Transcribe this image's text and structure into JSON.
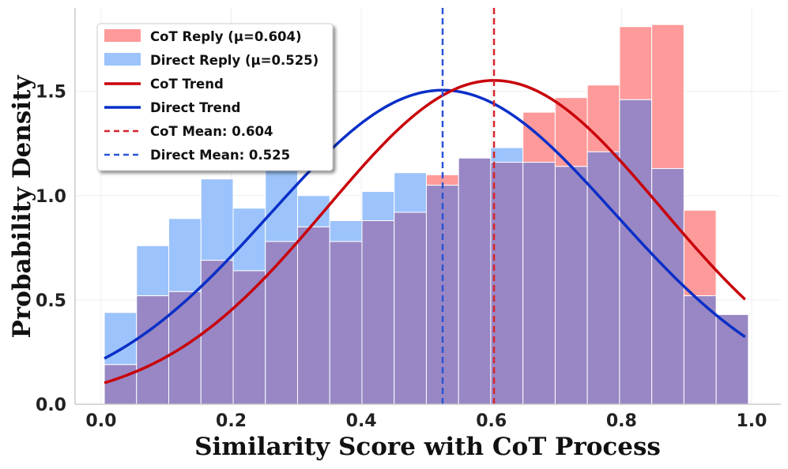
{
  "chart_data": {
    "type": "bar",
    "xlabel": "Similarity Score with CoT Process",
    "ylabel": "Probability Density",
    "xlim": [
      -0.04,
      1.045
    ],
    "ylim": [
      0,
      1.9
    ],
    "x_ticks": [
      "0.0",
      "0.2",
      "0.4",
      "0.6",
      "0.8",
      "1.0"
    ],
    "y_ticks": [
      "0.0",
      "0.5",
      "1.0",
      "1.5"
    ],
    "bin_edges": [
      0.005,
      0.0545,
      0.104,
      0.1535,
      0.203,
      0.2525,
      0.302,
      0.3515,
      0.401,
      0.4505,
      0.5,
      0.5495,
      0.599,
      0.6485,
      0.698,
      0.7475,
      0.797,
      0.8465,
      0.896,
      0.9455,
      0.995
    ],
    "series": [
      {
        "name": "CoT Reply (μ=0.604)",
        "kind": "histogram",
        "color": "#ff9a9a",
        "values": [
          0.19,
          0.52,
          0.54,
          0.69,
          0.64,
          0.78,
          0.85,
          0.78,
          0.88,
          0.92,
          1.1,
          1.18,
          1.16,
          1.4,
          1.47,
          1.53,
          1.81,
          1.82,
          0.93,
          0.43
        ]
      },
      {
        "name": "Direct Reply (μ=0.525)",
        "kind": "histogram",
        "color": "#9cc3fb",
        "values": [
          0.44,
          0.76,
          0.89,
          1.08,
          0.94,
          1.14,
          1.0,
          0.88,
          1.02,
          1.11,
          1.05,
          1.18,
          1.23,
          1.16,
          1.14,
          1.21,
          1.46,
          1.13,
          0.52,
          0.43
        ]
      },
      {
        "name": "CoT Trend",
        "kind": "normal_pdf",
        "mean": 0.604,
        "std": 0.257,
        "color": "#c8000a",
        "x_range": [
          0.005,
          0.99
        ]
      },
      {
        "name": "Direct Trend",
        "kind": "normal_pdf",
        "mean": 0.525,
        "std": 0.265,
        "color": "#0a2fc8",
        "x_range": [
          0.005,
          0.99
        ]
      },
      {
        "name": "CoT Mean: 0.604",
        "kind": "vline",
        "x": 0.604,
        "color": "#d6252c"
      },
      {
        "name": "Direct Mean: 0.525",
        "kind": "vline",
        "x": 0.525,
        "color": "#2a55d6"
      }
    ],
    "overlap_color": "#9887c4",
    "grid": true,
    "legend_position": "top-left"
  }
}
